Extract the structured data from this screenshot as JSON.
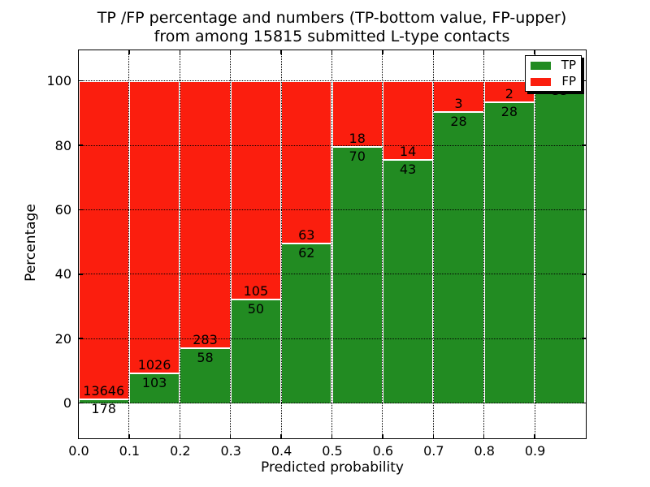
{
  "chart_data": {
    "type": "bar",
    "stacked": true,
    "normalized_to_percent": true,
    "title_line1": "TP /FP percentage and numbers (TP-bottom value, FP-upper)",
    "title_line2": "from among 15815 submitted L-type contacts",
    "total_submitted": 15815,
    "xlabel": "Predicted probability",
    "ylabel": "Percentage",
    "categories": [
      "0.0",
      "0.1",
      "0.2",
      "0.3",
      "0.4",
      "0.5",
      "0.6",
      "0.7",
      "0.8",
      "0.9"
    ],
    "y_tick_values": [
      0,
      20,
      40,
      60,
      80,
      100
    ],
    "xlim": [
      0.0,
      1.0
    ],
    "ylim": [
      -10.8,
      109.6
    ],
    "grid": "dotted",
    "legend": {
      "position": "upper right"
    },
    "series": [
      {
        "name": "TP",
        "color": "#228b22",
        "values": [
          178,
          103,
          58,
          50,
          62,
          70,
          43,
          28,
          28,
          35
        ]
      },
      {
        "name": "FP",
        "color": "#fb1e0e",
        "values": [
          13646,
          1026,
          283,
          105,
          63,
          18,
          14,
          3,
          2,
          0
        ]
      }
    ]
  },
  "colors": {
    "tp": "#228b22",
    "fp": "#fb1e0e",
    "text": "#000000",
    "background": "#ffffff"
  }
}
